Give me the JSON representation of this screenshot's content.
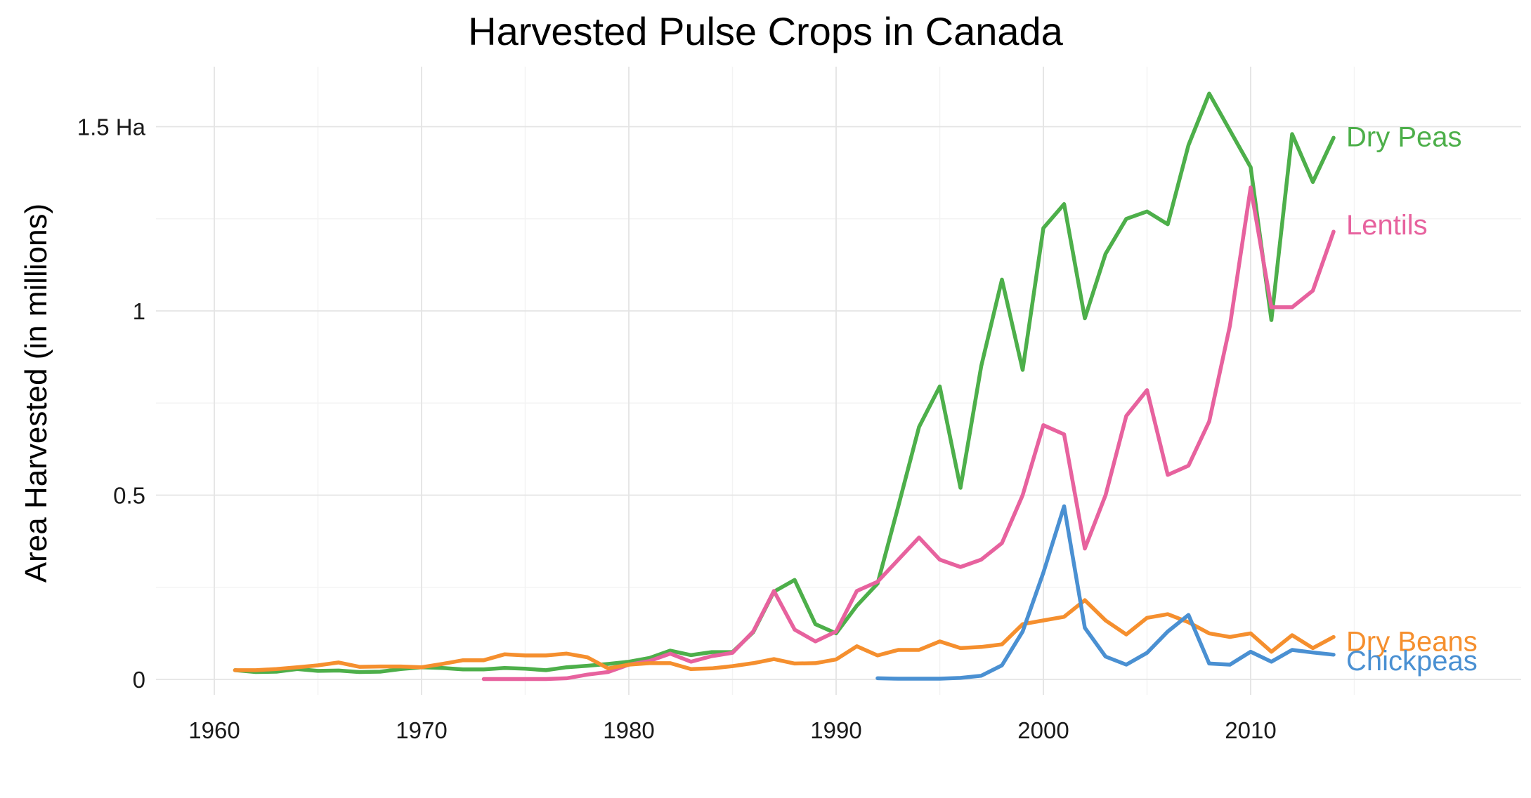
{
  "chart_data": {
    "type": "line",
    "title": "Harvested Pulse Crops in Canada",
    "xlabel": "",
    "ylabel": "Area Harvested (in millions)",
    "xlim": [
      1956.5,
      2020.5
    ],
    "ylim": [
      -0.02,
      1.68
    ],
    "x_ticks": [
      1960,
      1970,
      1980,
      1990,
      2000,
      2010
    ],
    "y_ticks": [
      0,
      0.5,
      1,
      1.5
    ],
    "y_tick_labels": [
      "0",
      "0.5",
      "1",
      "1.5 Ha"
    ],
    "grid": true,
    "legend": "direct labels at line ends (right)",
    "series": [
      {
        "name": "Dry Peas",
        "color": "#4DAF4A",
        "x": [
          1961,
          1962,
          1963,
          1964,
          1965,
          1966,
          1967,
          1968,
          1969,
          1970,
          1971,
          1972,
          1973,
          1974,
          1975,
          1976,
          1977,
          1978,
          1979,
          1980,
          1981,
          1982,
          1983,
          1984,
          1985,
          1986,
          1987,
          1988,
          1989,
          1990,
          1991,
          1992,
          1993,
          1994,
          1995,
          1996,
          1997,
          1998,
          1999,
          2000,
          2001,
          2002,
          2003,
          2004,
          2005,
          2006,
          2007,
          2008,
          2009,
          2010,
          2011,
          2012,
          2013,
          2014
        ],
        "values": [
          0.025,
          0.02,
          0.021,
          0.028,
          0.023,
          0.024,
          0.02,
          0.021,
          0.028,
          0.033,
          0.031,
          0.027,
          0.027,
          0.031,
          0.029,
          0.025,
          0.033,
          0.037,
          0.042,
          0.048,
          0.058,
          0.078,
          0.066,
          0.074,
          0.074,
          0.128,
          0.238,
          0.27,
          0.15,
          0.125,
          0.2,
          0.26,
          0.47,
          0.685,
          0.795,
          0.52,
          0.85,
          1.085,
          0.84,
          1.225,
          1.29,
          0.98,
          1.155,
          1.25,
          1.27,
          1.235,
          1.45,
          1.59,
          1.49,
          1.39,
          0.975,
          1.48,
          1.35,
          1.47
        ]
      },
      {
        "name": "Lentils",
        "color": "#E7629E",
        "x": [
          1973,
          1974,
          1975,
          1976,
          1977,
          1978,
          1979,
          1980,
          1981,
          1982,
          1983,
          1984,
          1985,
          1986,
          1987,
          1988,
          1989,
          1990,
          1991,
          1992,
          1993,
          1994,
          1995,
          1996,
          1997,
          1998,
          1999,
          2000,
          2001,
          2002,
          2003,
          2004,
          2005,
          2006,
          2007,
          2008,
          2009,
          2010,
          2011,
          2012,
          2013,
          2014
        ],
        "values": [
          0.001,
          0.001,
          0.001,
          0.001,
          0.003,
          0.013,
          0.02,
          0.04,
          0.05,
          0.07,
          0.048,
          0.063,
          0.072,
          0.13,
          0.24,
          0.135,
          0.103,
          0.13,
          0.24,
          0.265,
          0.325,
          0.385,
          0.325,
          0.305,
          0.325,
          0.37,
          0.5,
          0.69,
          0.665,
          0.355,
          0.5,
          0.715,
          0.785,
          0.555,
          0.58,
          0.7,
          0.96,
          1.335,
          1.01,
          1.01,
          1.055,
          1.215
        ]
      },
      {
        "name": "Dry Beans",
        "color": "#F58F2E",
        "x": [
          1961,
          1962,
          1963,
          1964,
          1965,
          1966,
          1967,
          1968,
          1969,
          1970,
          1971,
          1972,
          1973,
          1974,
          1975,
          1976,
          1977,
          1978,
          1979,
          1980,
          1981,
          1982,
          1983,
          1984,
          1985,
          1986,
          1987,
          1988,
          1989,
          1990,
          1991,
          1992,
          1993,
          1994,
          1995,
          1996,
          1997,
          1998,
          1999,
          2000,
          2001,
          2002,
          2003,
          2004,
          2005,
          2006,
          2007,
          2008,
          2009,
          2010,
          2011,
          2012,
          2013,
          2014
        ],
        "values": [
          0.025,
          0.025,
          0.028,
          0.033,
          0.038,
          0.046,
          0.034,
          0.035,
          0.035,
          0.033,
          0.042,
          0.052,
          0.052,
          0.068,
          0.065,
          0.065,
          0.07,
          0.06,
          0.03,
          0.04,
          0.044,
          0.044,
          0.028,
          0.03,
          0.036,
          0.044,
          0.055,
          0.043,
          0.044,
          0.054,
          0.09,
          0.065,
          0.08,
          0.08,
          0.103,
          0.085,
          0.088,
          0.095,
          0.15,
          0.16,
          0.17,
          0.215,
          0.16,
          0.122,
          0.167,
          0.177,
          0.155,
          0.125,
          0.115,
          0.125,
          0.075,
          0.12,
          0.085,
          0.115
        ]
      },
      {
        "name": "Chickpeas",
        "color": "#4A90D2",
        "x": [
          1992,
          1993,
          1994,
          1995,
          1996,
          1997,
          1998,
          1999,
          2000,
          2001,
          2002,
          2003,
          2004,
          2005,
          2006,
          2007,
          2008,
          2009,
          2010,
          2011,
          2012,
          2013,
          2014
        ],
        "values": [
          0.003,
          0.002,
          0.002,
          0.002,
          0.004,
          0.01,
          0.038,
          0.13,
          0.29,
          0.47,
          0.14,
          0.062,
          0.04,
          0.072,
          0.13,
          0.175,
          0.043,
          0.04,
          0.075,
          0.048,
          0.08,
          0.073,
          0.067
        ]
      }
    ]
  }
}
